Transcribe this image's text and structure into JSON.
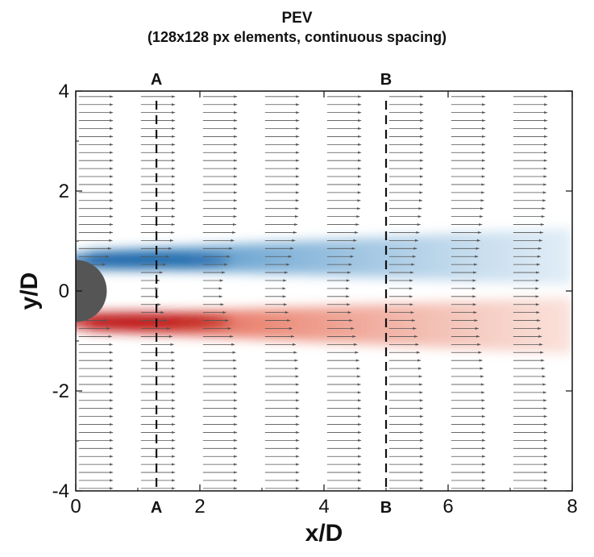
{
  "chart_data": {
    "type": "heatmap",
    "title": "PEV",
    "subtitle": "(128x128 px elements, continuous spacing)",
    "xlabel": "x/D",
    "ylabel": "y/D",
    "xlim": [
      0,
      8
    ],
    "ylim": [
      -4,
      4
    ],
    "xticks": [
      0,
      2,
      4,
      6,
      8
    ],
    "yticks": [
      -4,
      -2,
      0,
      2,
      4
    ],
    "section_lines": [
      {
        "label": "A",
        "x": 1.3
      },
      {
        "label": "B",
        "x": 5.0
      }
    ],
    "cylinder": {
      "center_x": 0,
      "center_y": 0,
      "radius": 0.5,
      "color": "#555555"
    },
    "colormap": {
      "negative": "#1f6fb3",
      "positive": "#c41a1a",
      "zero": "#ffffff"
    },
    "vorticity_bands": [
      {
        "sign": "negative",
        "y_center": 0.6,
        "peak": 1.0,
        "x_start": 0.2,
        "x_end": 8
      },
      {
        "sign": "positive",
        "y_center": -0.6,
        "peak": 1.0,
        "x_start": 0.2,
        "x_end": 8
      }
    ],
    "velocity_profile_stations_x": [
      0.0,
      1.0,
      2.0,
      3.0,
      4.0,
      5.0,
      6.0,
      7.0
    ],
    "velocity_vectors": "u(y)/U = 1 - deficit(x) * exp(-(y/w(x))^2), arrows pointing +x"
  }
}
